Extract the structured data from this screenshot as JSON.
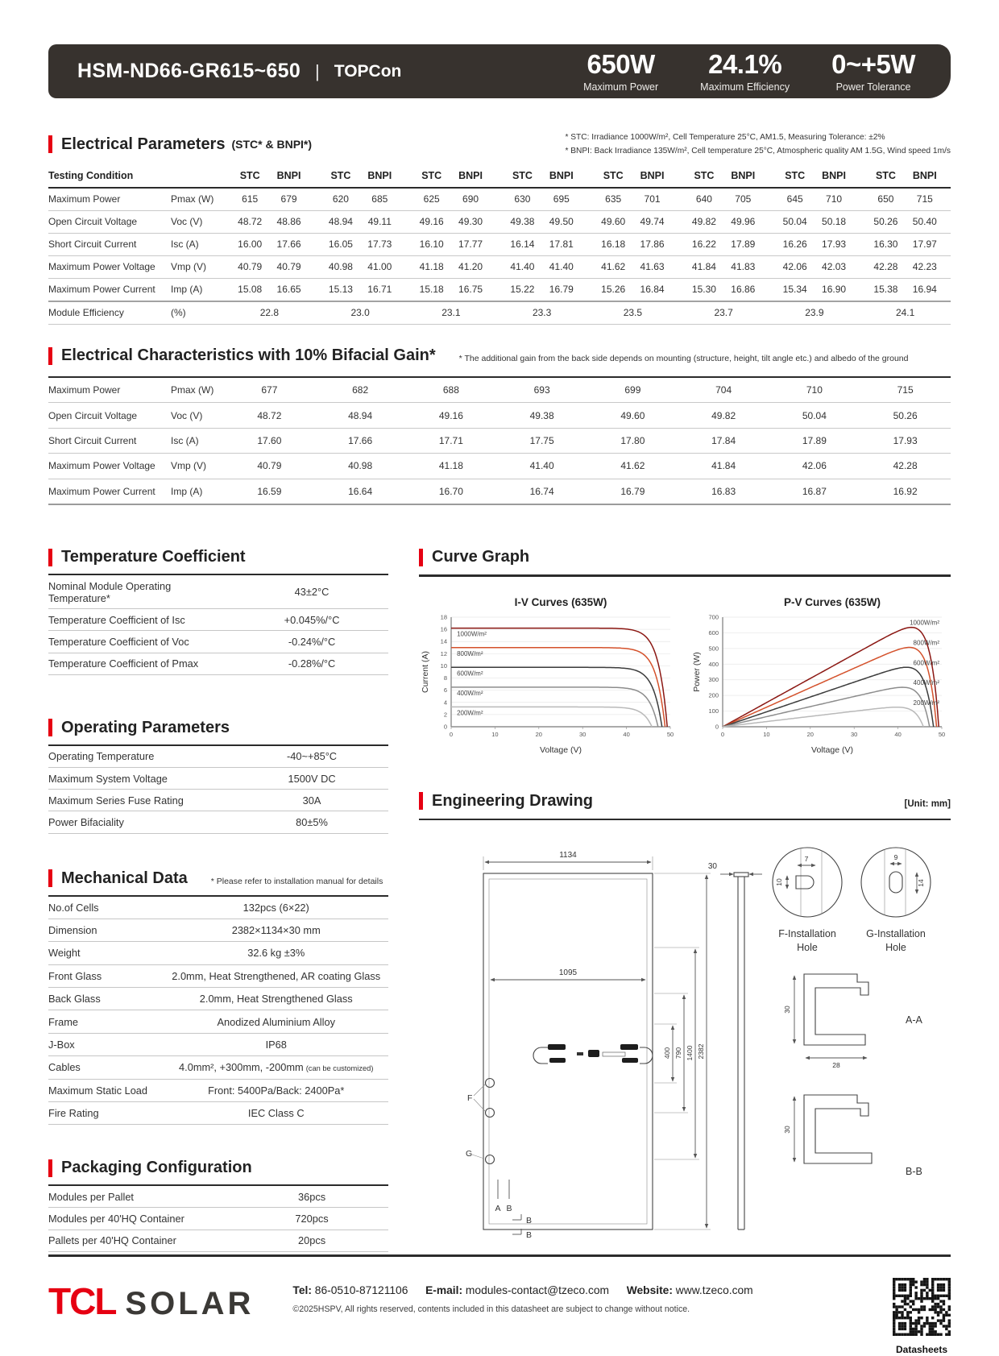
{
  "header": {
    "model": "HSM-ND66-GR615~650",
    "separator": "|",
    "tech": "TOPCon",
    "stats": [
      {
        "value": "650W",
        "label": "Maximum Power"
      },
      {
        "value": "24.1%",
        "label": "Maximum Efficiency"
      },
      {
        "value": "0~+5W",
        "label": "Power Tolerance"
      }
    ]
  },
  "colors": {
    "accent_red": "#E60012",
    "topbar_bg": "#37322E"
  },
  "electrical_parameters": {
    "title": "Electrical Parameters",
    "title_suffix": "(STC* & BNPI*)",
    "note1": "* STC: Irradiance 1000W/m², Cell Temperature 25°C, AM1.5, Measuring Tolerance: ±2%",
    "note2": "* BNPI: Back Irradiance 135W/m², Cell temperature 25°C, Atmospheric quality AM 1.5G, Wind speed 1m/s",
    "col_header_label": "Testing Condition",
    "pair_headers": [
      "STC",
      "BNPI"
    ],
    "rows": [
      {
        "label": "Maximum Power",
        "symbol": "Pmax (W)",
        "values": [
          [
            "615",
            "679"
          ],
          [
            "620",
            "685"
          ],
          [
            "625",
            "690"
          ],
          [
            "630",
            "695"
          ],
          [
            "635",
            "701"
          ],
          [
            "640",
            "705"
          ],
          [
            "645",
            "710"
          ],
          [
            "650",
            "715"
          ]
        ]
      },
      {
        "label": "Open Circuit Voltage",
        "symbol": "Voc (V)",
        "values": [
          [
            "48.72",
            "48.86"
          ],
          [
            "48.94",
            "49.11"
          ],
          [
            "49.16",
            "49.30"
          ],
          [
            "49.38",
            "49.50"
          ],
          [
            "49.60",
            "49.74"
          ],
          [
            "49.82",
            "49.96"
          ],
          [
            "50.04",
            "50.18"
          ],
          [
            "50.26",
            "50.40"
          ]
        ]
      },
      {
        "label": "Short Circuit Current",
        "symbol": "Isc (A)",
        "values": [
          [
            "16.00",
            "17.66"
          ],
          [
            "16.05",
            "17.73"
          ],
          [
            "16.10",
            "17.77"
          ],
          [
            "16.14",
            "17.81"
          ],
          [
            "16.18",
            "17.86"
          ],
          [
            "16.22",
            "17.89"
          ],
          [
            "16.26",
            "17.93"
          ],
          [
            "16.30",
            "17.97"
          ]
        ]
      },
      {
        "label": "Maximum Power Voltage",
        "symbol": "Vmp (V)",
        "values": [
          [
            "40.79",
            "40.79"
          ],
          [
            "40.98",
            "41.00"
          ],
          [
            "41.18",
            "41.20"
          ],
          [
            "41.40",
            "41.40"
          ],
          [
            "41.62",
            "41.63"
          ],
          [
            "41.84",
            "41.83"
          ],
          [
            "42.06",
            "42.03"
          ],
          [
            "42.28",
            "42.23"
          ]
        ]
      },
      {
        "label": "Maximum Power Current",
        "symbol": "Imp (A)",
        "values": [
          [
            "15.08",
            "16.65"
          ],
          [
            "15.13",
            "16.71"
          ],
          [
            "15.18",
            "16.75"
          ],
          [
            "15.22",
            "16.79"
          ],
          [
            "15.26",
            "16.84"
          ],
          [
            "15.30",
            "16.86"
          ],
          [
            "15.34",
            "16.90"
          ],
          [
            "15.38",
            "16.94"
          ]
        ]
      }
    ],
    "efficiency_row": {
      "label": "Module Efficiency",
      "symbol": "(%)",
      "values": [
        "22.8",
        "23.0",
        "23.1",
        "23.3",
        "23.5",
        "23.7",
        "23.9",
        "24.1"
      ]
    }
  },
  "bifacial": {
    "title": "Electrical Characteristics with 10% Bifacial Gain*",
    "note": "* The additional gain from the back side depends on mounting (structure, height, tilt angle etc.) and albedo of the ground",
    "rows": [
      {
        "label": "Maximum Power",
        "symbol": "Pmax (W)",
        "values": [
          "677",
          "682",
          "688",
          "693",
          "699",
          "704",
          "710",
          "715"
        ]
      },
      {
        "label": "Open Circuit Voltage",
        "symbol": "Voc (V)",
        "values": [
          "48.72",
          "48.94",
          "49.16",
          "49.38",
          "49.60",
          "49.82",
          "50.04",
          "50.26"
        ]
      },
      {
        "label": "Short Circuit Current",
        "symbol": "Isc (A)",
        "values": [
          "17.60",
          "17.66",
          "17.71",
          "17.75",
          "17.80",
          "17.84",
          "17.89",
          "17.93"
        ]
      },
      {
        "label": "Maximum Power Voltage",
        "symbol": "Vmp (V)",
        "values": [
          "40.79",
          "40.98",
          "41.18",
          "41.40",
          "41.62",
          "41.84",
          "42.06",
          "42.28"
        ]
      },
      {
        "label": "Maximum Power Current",
        "symbol": "Imp (A)",
        "values": [
          "16.59",
          "16.64",
          "16.70",
          "16.74",
          "16.79",
          "16.83",
          "16.87",
          "16.92"
        ]
      }
    ]
  },
  "temperature_coefficient": {
    "title": "Temperature Coefficient",
    "rows": [
      {
        "label": "Nominal Module Operating Temperature*",
        "value": "43±2°C"
      },
      {
        "label": "Temperature Coefficient of Isc",
        "value": "+0.045%/°C"
      },
      {
        "label": "Temperature Coefficient of Voc",
        "value": "-0.24%/°C"
      },
      {
        "label": "Temperature Coefficient of Pmax",
        "value": "-0.28%/°C"
      }
    ]
  },
  "operating_parameters": {
    "title": "Operating Parameters",
    "rows": [
      {
        "label": "Operating Temperature",
        "value": "-40~+85°C"
      },
      {
        "label": "Maximum System Voltage",
        "value": "1500V DC"
      },
      {
        "label": "Maximum Series Fuse Rating",
        "value": "30A"
      },
      {
        "label": "Power Bifaciality",
        "value": "80±5%"
      }
    ]
  },
  "mechanical_data": {
    "title": "Mechanical Data",
    "note": "* Please refer to installation manual for details",
    "rows": [
      {
        "label": "No.of Cells",
        "value": "132pcs (6×22)"
      },
      {
        "label": "Dimension",
        "value": "2382×1134×30 mm"
      },
      {
        "label": "Weight",
        "value": "32.6 kg ±3%"
      },
      {
        "label": "Front Glass",
        "value": "2.0mm, Heat Strengthened, AR coating Glass"
      },
      {
        "label": "Back Glass",
        "value": "2.0mm, Heat Strengthened Glass"
      },
      {
        "label": "Frame",
        "value": "Anodized Aluminium Alloy"
      },
      {
        "label": "J-Box",
        "value": "IP68"
      },
      {
        "label": "Cables",
        "value": "4.0mm², +300mm, -200mm",
        "value_suffix": "(can be customized)"
      },
      {
        "label": "Maximum Static Load",
        "value": "Front: 5400Pa/Back: 2400Pa*"
      },
      {
        "label": "Fire Rating",
        "value": "IEC Class C"
      }
    ]
  },
  "packaging": {
    "title": "Packaging Configuration",
    "rows": [
      {
        "label": "Modules per Pallet",
        "value": "36pcs"
      },
      {
        "label": "Modules per 40'HQ Container",
        "value": "720pcs"
      },
      {
        "label": "Pallets per 40'HQ Container",
        "value": "20pcs"
      }
    ]
  },
  "curve_graph": {
    "title": "Curve Graph"
  },
  "chart_data": [
    {
      "type": "line",
      "subtype": "iv",
      "title": "I-V Curves (635W)",
      "xlabel": "Voltage (V)",
      "ylabel": "Current (A)",
      "xlim": [
        0,
        50
      ],
      "ylim": [
        0,
        18
      ],
      "ystep": 2,
      "grid": "horizontal",
      "legend_position": "inline-left",
      "series": [
        {
          "name": "1000W/m²",
          "isc": 16.2,
          "voc": 49.3,
          "color": "#8b1712"
        },
        {
          "name": "800W/m²",
          "isc": 13.0,
          "voc": 48.8,
          "color": "#d4512b"
        },
        {
          "name": "600W/m²",
          "isc": 9.75,
          "voc": 48.1,
          "color": "#3b3b3b"
        },
        {
          "name": "400W/m²",
          "isc": 6.5,
          "voc": 47.2,
          "color": "#8c8c8c"
        },
        {
          "name": "200W/m²",
          "isc": 3.25,
          "voc": 45.8,
          "color": "#b9b9b9"
        }
      ]
    },
    {
      "type": "line",
      "subtype": "pv",
      "title": "P-V Curves (635W)",
      "xlabel": "Voltage (V)",
      "ylabel": "Power (W)",
      "xlim": [
        0,
        50
      ],
      "ylim": [
        0,
        700
      ],
      "ystep": 100,
      "grid": "horizontal",
      "legend_position": "inline-right",
      "series": [
        {
          "name": "1000W/m²",
          "isc": 16.2,
          "voc": 49.3,
          "pmax": 635,
          "color": "#8b1712"
        },
        {
          "name": "800W/m²",
          "isc": 13.0,
          "voc": 48.8,
          "pmax": 507,
          "color": "#d4512b"
        },
        {
          "name": "600W/m²",
          "isc": 9.75,
          "voc": 48.1,
          "pmax": 380,
          "color": "#3b3b3b"
        },
        {
          "name": "400W/m²",
          "isc": 6.5,
          "voc": 47.2,
          "pmax": 252,
          "color": "#8c8c8c"
        },
        {
          "name": "200W/m²",
          "isc": 3.25,
          "voc": 45.8,
          "pmax": 125,
          "color": "#b9b9b9"
        }
      ]
    }
  ],
  "engineering": {
    "title": "Engineering Drawing",
    "unit": "[Unit: mm]",
    "dims": {
      "width": "1134",
      "inner_width": "1095",
      "m400": "400",
      "m790": "790",
      "m1400": "1400",
      "height": "2382",
      "thickness": "30",
      "f_w": "7",
      "f_h": "10",
      "g_w": "9",
      "g_h": "14",
      "aa_w": "28"
    },
    "labels": {
      "f": "F",
      "g": "G",
      "a": "A",
      "b": "B",
      "aa": "A-A",
      "bb": "B-B",
      "f1": "F-Installation",
      "f2": "Hole",
      "g1": "G-Installation",
      "g2": "Hole"
    }
  },
  "footer": {
    "logo_tcl": "TCL",
    "logo_solar": "SOLAR",
    "tel_label": "Tel:",
    "tel": "86-0510-87121106",
    "email_label": "E-mail:",
    "email": "modules-contact@tzeco.com",
    "web_label": "Website:",
    "web": "www.tzeco.com",
    "copyright": "©2025HSPV, All rights reserved, contents included in this datasheet are subject to change without notice.",
    "qr_label": "Datasheets"
  }
}
